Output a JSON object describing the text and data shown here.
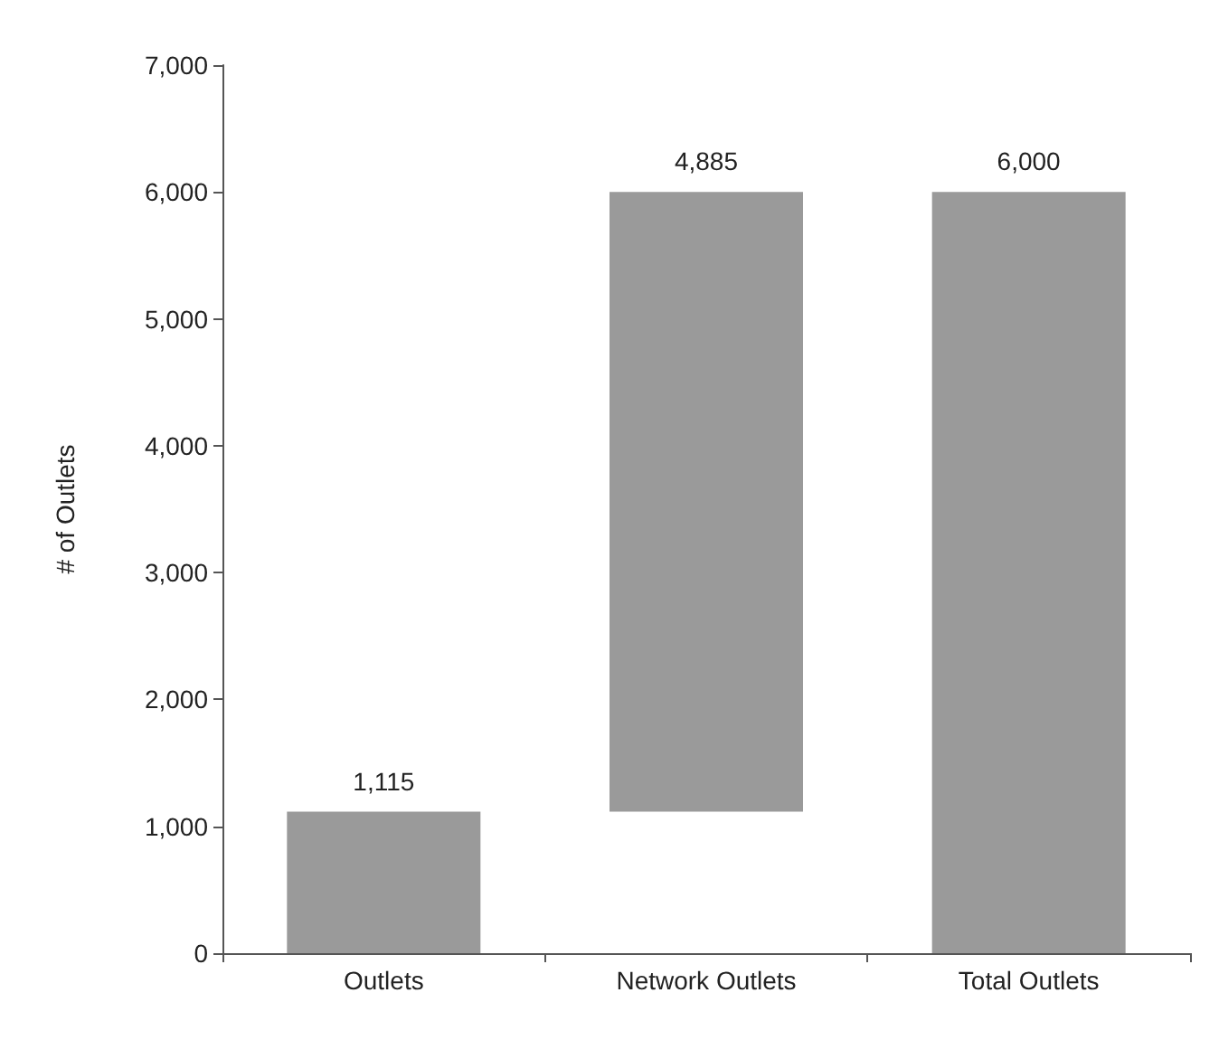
{
  "chart_data": {
    "type": "bar",
    "ylabel": "# of Outlets",
    "categories": [
      "Outlets",
      "Network Outlets",
      "Total Outlets"
    ],
    "values": [
      1115,
      4885,
      6000
    ],
    "base": [
      0,
      1115,
      0
    ],
    "value_labels": [
      "1,115",
      "4,885",
      "6,000"
    ],
    "color": "#9a9a9a",
    "ylim": [
      0,
      7000
    ],
    "yticks": [
      {
        "value": 0,
        "label": "0"
      },
      {
        "value": 1000,
        "label": "1,000"
      },
      {
        "value": 2000,
        "label": "2,000"
      },
      {
        "value": 3000,
        "label": "3,000"
      },
      {
        "value": 4000,
        "label": "4,000"
      },
      {
        "value": 5000,
        "label": "5,000"
      },
      {
        "value": 6000,
        "label": "6,000"
      },
      {
        "value": 7000,
        "label": "7,000"
      }
    ]
  }
}
